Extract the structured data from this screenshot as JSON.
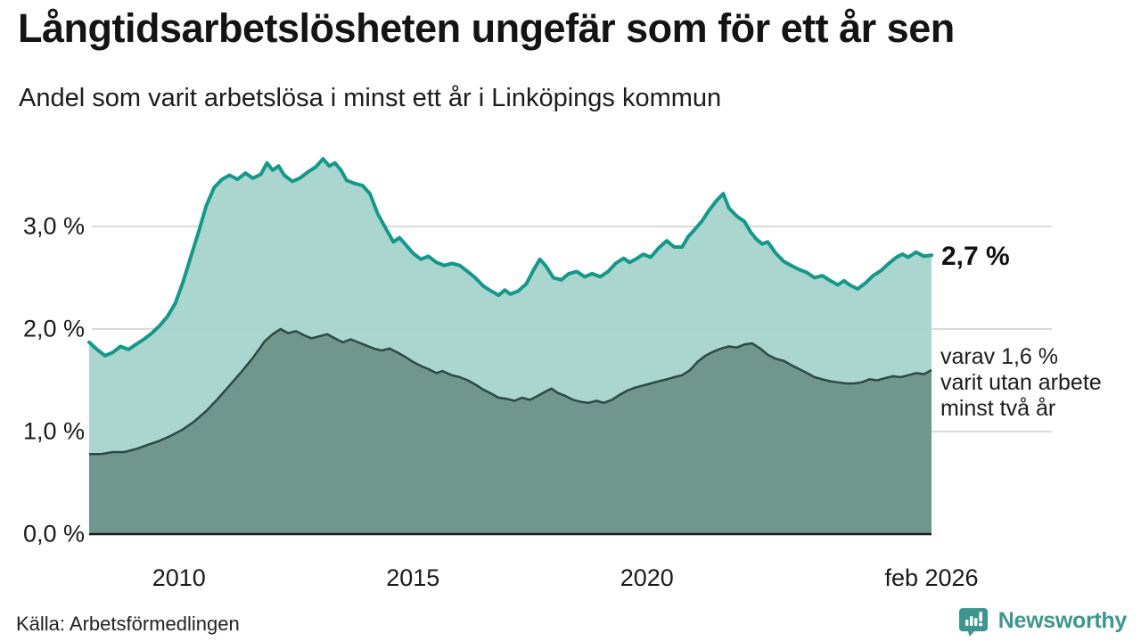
{
  "header": {
    "title": "Långtidsarbetslösheten ungefär som för ett år sen",
    "subtitle": "Andel som varit arbetslösa i minst ett år i Linköpings kommun"
  },
  "annotations": {
    "end_value_label": "2,7 %",
    "sub_series_label": "varav 1,6 %\nvarit utan arbete\nminst två år"
  },
  "footer": {
    "source": "Källa: Arbetsförmedlingen",
    "brand": "Newsworthy"
  },
  "colors": {
    "total_line": "#14988a",
    "total_fill": "#a8d4cd",
    "sub_line": "#2b4a45",
    "sub_fill": "#6e948d",
    "gridline": "#d8dbde",
    "axis": "#1a1a1a",
    "brand_teal": "#3d968e",
    "text": "#1a1a1a"
  },
  "chart_data": {
    "type": "area",
    "title": "Långtidsarbetslösheten ungefär som för ett år sen",
    "subtitle": "Andel som varit arbetslösa i minst ett år i Linköpings kommun",
    "xlabel": "",
    "ylabel": "",
    "x_domain": [
      2008.08,
      2026.08
    ],
    "ylim": [
      0,
      3.8
    ],
    "grid": true,
    "legend": "none",
    "y_ticks": [
      {
        "value": 3.0,
        "label": "3,0 %"
      },
      {
        "value": 2.0,
        "label": "2,0 %"
      },
      {
        "value": 1.0,
        "label": "1,0 %"
      },
      {
        "value": 0.0,
        "label": "0,0 %"
      }
    ],
    "x_ticks": [
      {
        "year": 2010.0,
        "label": "2010"
      },
      {
        "year": 2015.0,
        "label": "2015"
      },
      {
        "year": 2020.0,
        "label": "2020"
      },
      {
        "year": 2026.08,
        "label": "feb 2026"
      }
    ],
    "series": [
      {
        "id": "unemployed_min_1yr_total",
        "end_value_pct": 2.7,
        "points": [
          [
            2008.08,
            1.87
          ],
          [
            2008.25,
            1.8
          ],
          [
            2008.42,
            1.74
          ],
          [
            2008.58,
            1.77
          ],
          [
            2008.75,
            1.83
          ],
          [
            2008.92,
            1.8
          ],
          [
            2009.08,
            1.85
          ],
          [
            2009.25,
            1.9
          ],
          [
            2009.42,
            1.96
          ],
          [
            2009.58,
            2.03
          ],
          [
            2009.75,
            2.12
          ],
          [
            2009.92,
            2.25
          ],
          [
            2010.08,
            2.45
          ],
          [
            2010.25,
            2.7
          ],
          [
            2010.42,
            2.95
          ],
          [
            2010.58,
            3.2
          ],
          [
            2010.75,
            3.38
          ],
          [
            2010.92,
            3.46
          ],
          [
            2011.08,
            3.5
          ],
          [
            2011.25,
            3.46
          ],
          [
            2011.42,
            3.52
          ],
          [
            2011.58,
            3.47
          ],
          [
            2011.75,
            3.51
          ],
          [
            2011.88,
            3.62
          ],
          [
            2012.0,
            3.55
          ],
          [
            2012.13,
            3.59
          ],
          [
            2012.25,
            3.5
          ],
          [
            2012.42,
            3.44
          ],
          [
            2012.58,
            3.47
          ],
          [
            2012.75,
            3.53
          ],
          [
            2012.92,
            3.58
          ],
          [
            2013.08,
            3.66
          ],
          [
            2013.21,
            3.59
          ],
          [
            2013.33,
            3.62
          ],
          [
            2013.46,
            3.55
          ],
          [
            2013.58,
            3.45
          ],
          [
            2013.75,
            3.42
          ],
          [
            2013.92,
            3.4
          ],
          [
            2014.08,
            3.32
          ],
          [
            2014.25,
            3.12
          ],
          [
            2014.42,
            2.98
          ],
          [
            2014.58,
            2.85
          ],
          [
            2014.71,
            2.89
          ],
          [
            2014.83,
            2.83
          ],
          [
            2015.0,
            2.74
          ],
          [
            2015.17,
            2.68
          ],
          [
            2015.33,
            2.71
          ],
          [
            2015.5,
            2.65
          ],
          [
            2015.67,
            2.62
          ],
          [
            2015.83,
            2.64
          ],
          [
            2016.0,
            2.62
          ],
          [
            2016.17,
            2.56
          ],
          [
            2016.33,
            2.5
          ],
          [
            2016.5,
            2.42
          ],
          [
            2016.67,
            2.37
          ],
          [
            2016.83,
            2.33
          ],
          [
            2016.96,
            2.38
          ],
          [
            2017.08,
            2.34
          ],
          [
            2017.25,
            2.37
          ],
          [
            2017.42,
            2.44
          ],
          [
            2017.58,
            2.58
          ],
          [
            2017.71,
            2.68
          ],
          [
            2017.83,
            2.62
          ],
          [
            2018.0,
            2.5
          ],
          [
            2018.17,
            2.48
          ],
          [
            2018.33,
            2.54
          ],
          [
            2018.5,
            2.56
          ],
          [
            2018.67,
            2.51
          ],
          [
            2018.83,
            2.54
          ],
          [
            2019.0,
            2.51
          ],
          [
            2019.17,
            2.56
          ],
          [
            2019.33,
            2.64
          ],
          [
            2019.5,
            2.69
          ],
          [
            2019.63,
            2.65
          ],
          [
            2019.79,
            2.69
          ],
          [
            2019.92,
            2.73
          ],
          [
            2020.08,
            2.7
          ],
          [
            2020.25,
            2.79
          ],
          [
            2020.42,
            2.86
          ],
          [
            2020.58,
            2.8
          ],
          [
            2020.75,
            2.8
          ],
          [
            2020.88,
            2.9
          ],
          [
            2021.0,
            2.96
          ],
          [
            2021.17,
            3.05
          ],
          [
            2021.33,
            3.16
          ],
          [
            2021.5,
            3.26
          ],
          [
            2021.63,
            3.32
          ],
          [
            2021.75,
            3.18
          ],
          [
            2021.92,
            3.1
          ],
          [
            2022.08,
            3.05
          ],
          [
            2022.21,
            2.95
          ],
          [
            2022.33,
            2.88
          ],
          [
            2022.46,
            2.83
          ],
          [
            2022.58,
            2.85
          ],
          [
            2022.75,
            2.74
          ],
          [
            2022.92,
            2.66
          ],
          [
            2023.08,
            2.62
          ],
          [
            2023.25,
            2.58
          ],
          [
            2023.42,
            2.55
          ],
          [
            2023.58,
            2.5
          ],
          [
            2023.75,
            2.52
          ],
          [
            2023.92,
            2.47
          ],
          [
            2024.08,
            2.43
          ],
          [
            2024.21,
            2.47
          ],
          [
            2024.33,
            2.43
          ],
          [
            2024.5,
            2.39
          ],
          [
            2024.67,
            2.45
          ],
          [
            2024.83,
            2.52
          ],
          [
            2025.0,
            2.57
          ],
          [
            2025.17,
            2.64
          ],
          [
            2025.33,
            2.7
          ],
          [
            2025.46,
            2.73
          ],
          [
            2025.58,
            2.7
          ],
          [
            2025.75,
            2.75
          ],
          [
            2025.92,
            2.71
          ],
          [
            2026.08,
            2.72
          ]
        ]
      },
      {
        "id": "unemployed_min_2yr",
        "end_value_pct": 1.6,
        "points": [
          [
            2008.08,
            0.78
          ],
          [
            2008.33,
            0.78
          ],
          [
            2008.58,
            0.8
          ],
          [
            2008.83,
            0.8
          ],
          [
            2009.08,
            0.83
          ],
          [
            2009.33,
            0.87
          ],
          [
            2009.58,
            0.91
          ],
          [
            2009.83,
            0.96
          ],
          [
            2010.08,
            1.02
          ],
          [
            2010.33,
            1.1
          ],
          [
            2010.58,
            1.2
          ],
          [
            2010.83,
            1.32
          ],
          [
            2011.08,
            1.45
          ],
          [
            2011.33,
            1.58
          ],
          [
            2011.58,
            1.72
          ],
          [
            2011.83,
            1.88
          ],
          [
            2012.0,
            1.95
          ],
          [
            2012.17,
            2.0
          ],
          [
            2012.33,
            1.96
          ],
          [
            2012.5,
            1.98
          ],
          [
            2012.67,
            1.94
          ],
          [
            2012.83,
            1.91
          ],
          [
            2013.0,
            1.93
          ],
          [
            2013.17,
            1.95
          ],
          [
            2013.33,
            1.91
          ],
          [
            2013.5,
            1.87
          ],
          [
            2013.67,
            1.9
          ],
          [
            2013.83,
            1.87
          ],
          [
            2014.0,
            1.84
          ],
          [
            2014.17,
            1.81
          ],
          [
            2014.33,
            1.79
          ],
          [
            2014.5,
            1.81
          ],
          [
            2014.67,
            1.77
          ],
          [
            2014.83,
            1.73
          ],
          [
            2015.0,
            1.68
          ],
          [
            2015.17,
            1.64
          ],
          [
            2015.33,
            1.61
          ],
          [
            2015.5,
            1.57
          ],
          [
            2015.63,
            1.59
          ],
          [
            2015.83,
            1.55
          ],
          [
            2016.0,
            1.53
          ],
          [
            2016.17,
            1.5
          ],
          [
            2016.33,
            1.46
          ],
          [
            2016.5,
            1.41
          ],
          [
            2016.67,
            1.37
          ],
          [
            2016.83,
            1.33
          ],
          [
            2017.0,
            1.32
          ],
          [
            2017.17,
            1.3
          ],
          [
            2017.33,
            1.33
          ],
          [
            2017.5,
            1.31
          ],
          [
            2017.67,
            1.35
          ],
          [
            2017.83,
            1.39
          ],
          [
            2017.96,
            1.42
          ],
          [
            2018.08,
            1.38
          ],
          [
            2018.25,
            1.35
          ],
          [
            2018.42,
            1.31
          ],
          [
            2018.58,
            1.29
          ],
          [
            2018.75,
            1.28
          ],
          [
            2018.92,
            1.3
          ],
          [
            2019.08,
            1.28
          ],
          [
            2019.25,
            1.31
          ],
          [
            2019.42,
            1.36
          ],
          [
            2019.58,
            1.4
          ],
          [
            2019.75,
            1.43
          ],
          [
            2019.92,
            1.45
          ],
          [
            2020.08,
            1.47
          ],
          [
            2020.25,
            1.49
          ],
          [
            2020.42,
            1.51
          ],
          [
            2020.58,
            1.53
          ],
          [
            2020.75,
            1.55
          ],
          [
            2020.92,
            1.6
          ],
          [
            2021.08,
            1.68
          ],
          [
            2021.25,
            1.74
          ],
          [
            2021.42,
            1.78
          ],
          [
            2021.58,
            1.81
          ],
          [
            2021.75,
            1.83
          ],
          [
            2021.92,
            1.82
          ],
          [
            2022.08,
            1.85
          ],
          [
            2022.25,
            1.86
          ],
          [
            2022.42,
            1.81
          ],
          [
            2022.58,
            1.75
          ],
          [
            2022.75,
            1.71
          ],
          [
            2022.92,
            1.69
          ],
          [
            2023.08,
            1.65
          ],
          [
            2023.25,
            1.61
          ],
          [
            2023.42,
            1.57
          ],
          [
            2023.58,
            1.53
          ],
          [
            2023.75,
            1.51
          ],
          [
            2023.92,
            1.49
          ],
          [
            2024.08,
            1.48
          ],
          [
            2024.25,
            1.47
          ],
          [
            2024.42,
            1.47
          ],
          [
            2024.58,
            1.48
          ],
          [
            2024.75,
            1.51
          ],
          [
            2024.92,
            1.5
          ],
          [
            2025.08,
            1.52
          ],
          [
            2025.25,
            1.54
          ],
          [
            2025.42,
            1.53
          ],
          [
            2025.58,
            1.55
          ],
          [
            2025.75,
            1.57
          ],
          [
            2025.92,
            1.56
          ],
          [
            2026.08,
            1.6
          ]
        ]
      }
    ]
  }
}
